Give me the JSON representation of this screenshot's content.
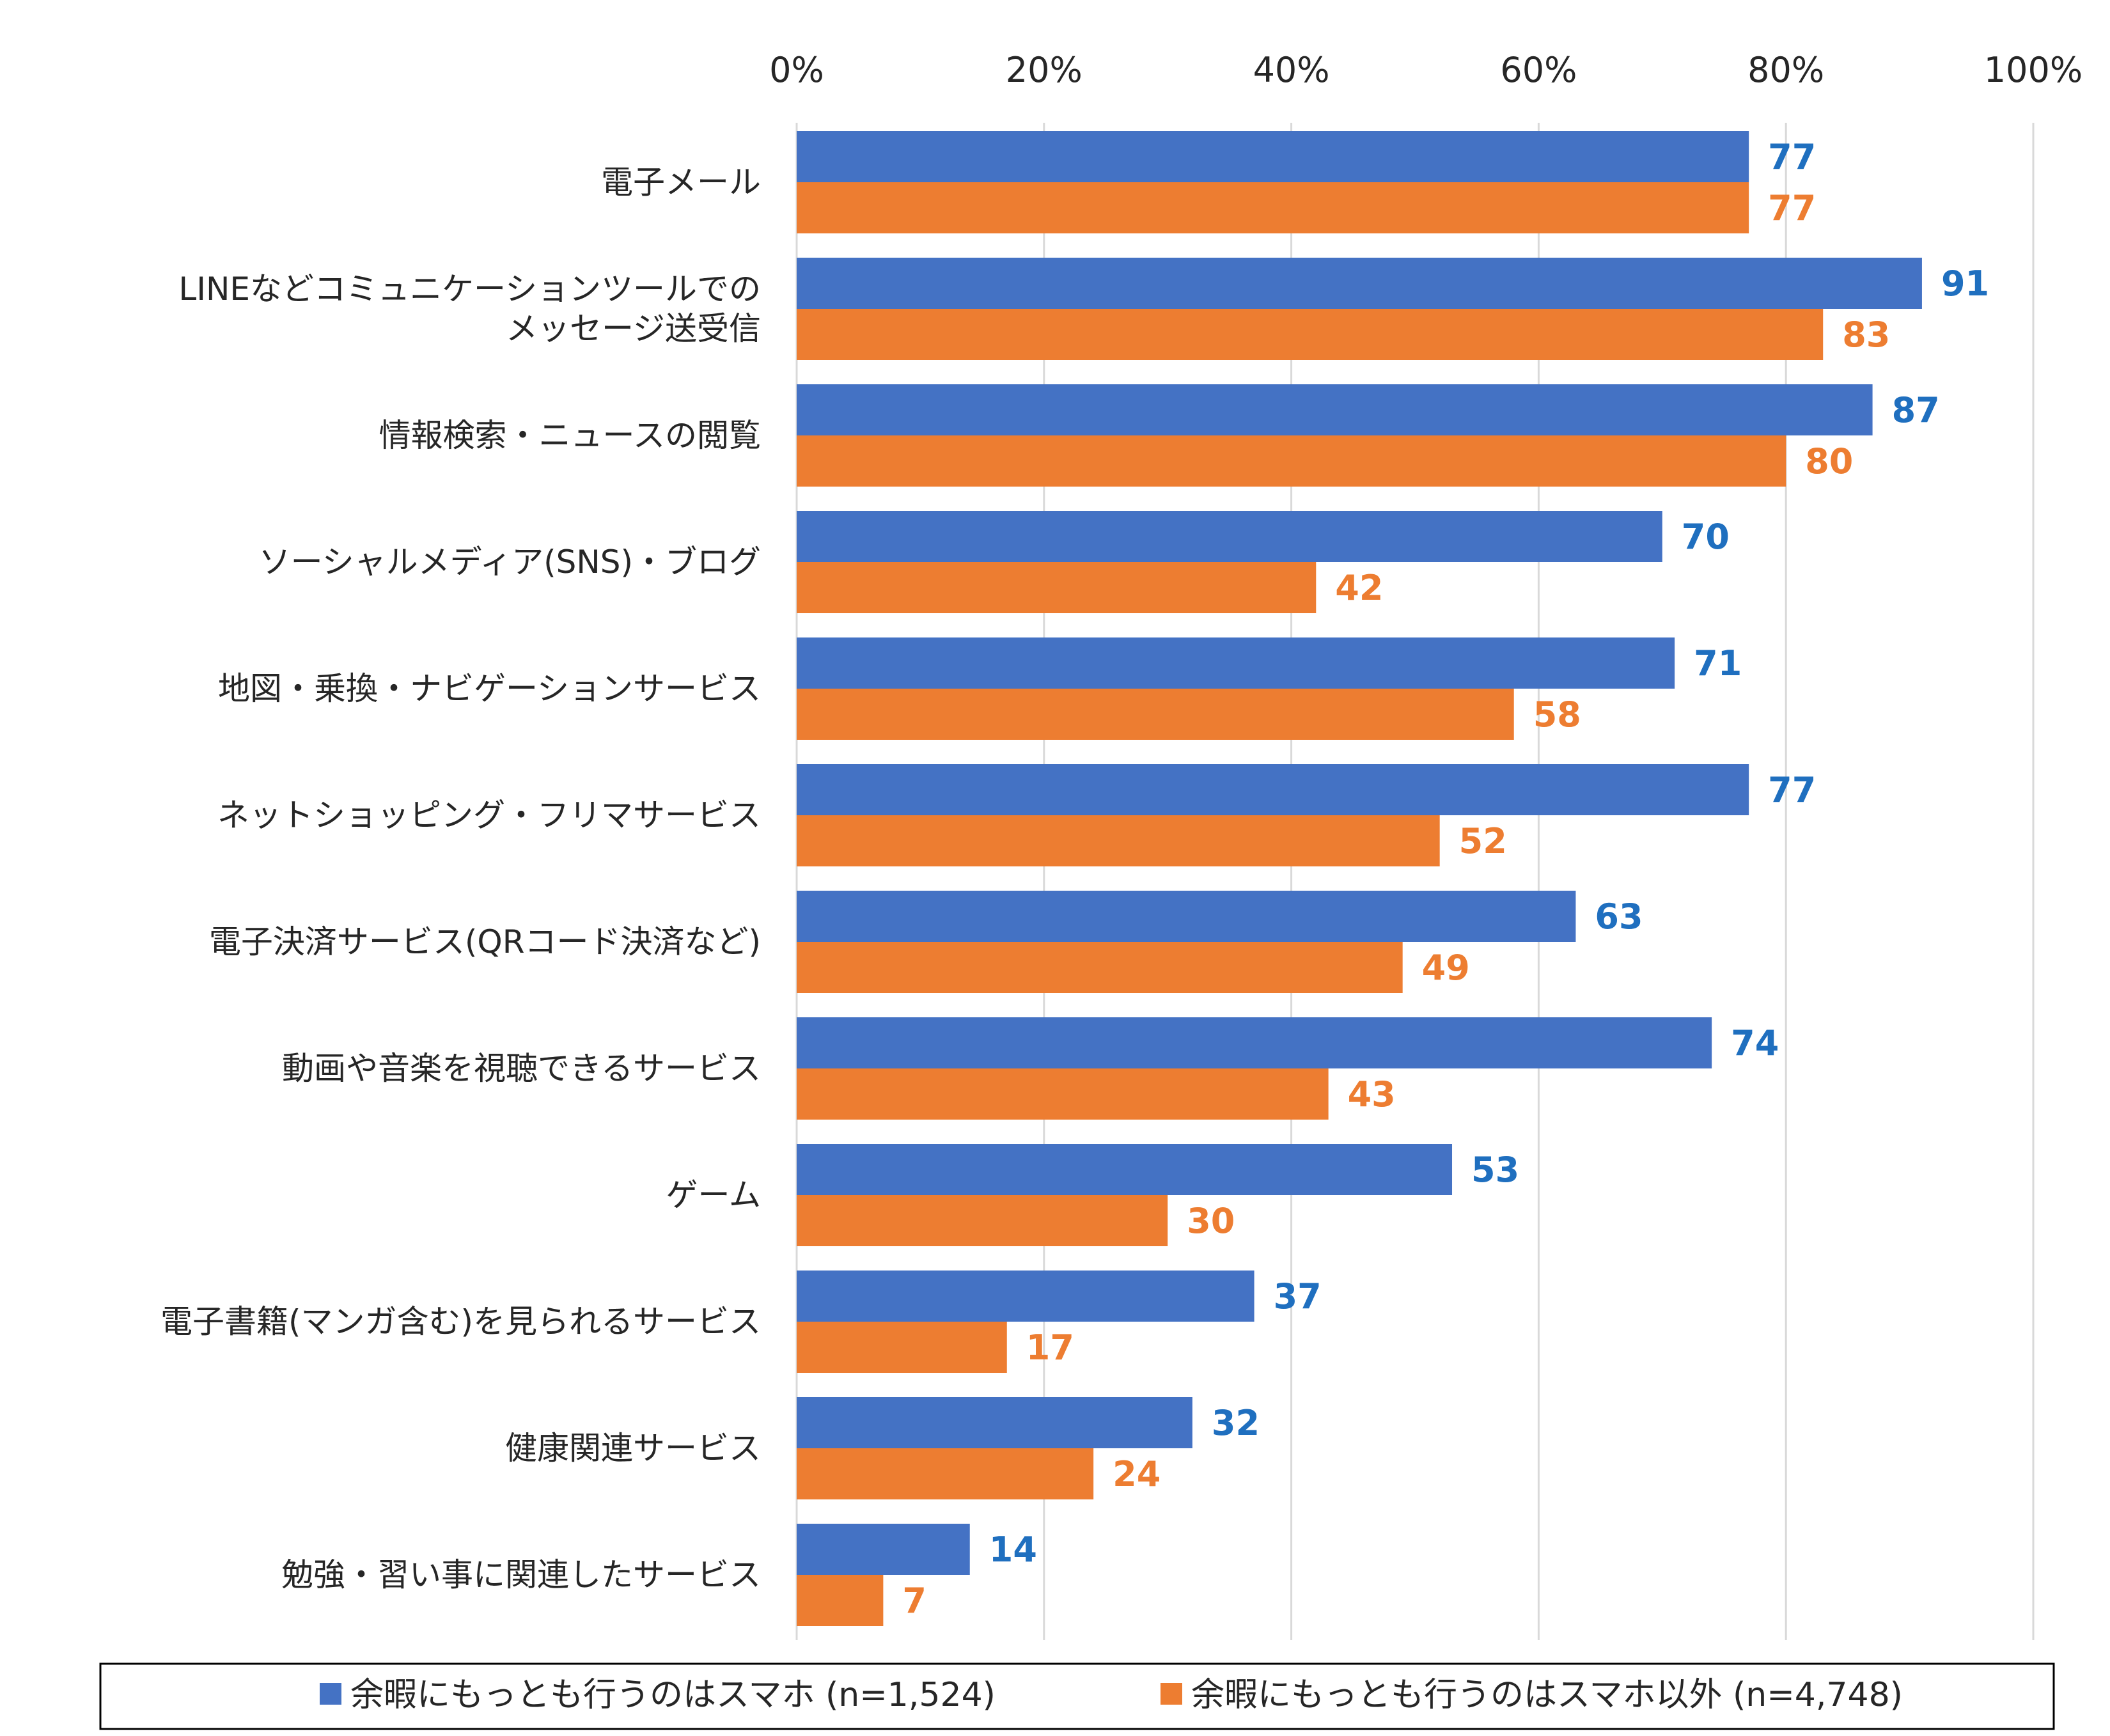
{
  "chart_data": {
    "type": "bar",
    "orientation": "horizontal",
    "xaxis": {
      "ticks": [
        "0%",
        "20%",
        "40%",
        "60%",
        "80%",
        "100%"
      ],
      "range": [
        0,
        100
      ],
      "position": "top",
      "grid": true
    },
    "categories": [
      [
        "電子メール"
      ],
      [
        "LINEなどコミュニケーションツールでの",
        "メッセージ送受信"
      ],
      [
        "情報検索・ニュースの閲覧"
      ],
      [
        "ソーシャルメディア(SNS)・ブログ"
      ],
      [
        "地図・乗換・ナビゲーションサービス"
      ],
      [
        "ネットショッピング・フリマサービス"
      ],
      [
        "電子決済サービス(QRコード決済など)"
      ],
      [
        "動画や音楽を視聴できるサービス"
      ],
      [
        "ゲーム"
      ],
      [
        "電子書籍(マンガ含む)を見られるサービス"
      ],
      [
        "健康関連サービス"
      ],
      [
        "勉強・習い事に関連したサービス"
      ]
    ],
    "series": [
      {
        "name": "余暇にもっとも行うのはスマホ (n=1,524)",
        "color": "#4472c4",
        "label_color": "#1f6fbf",
        "values": [
          77,
          91,
          87,
          70,
          71,
          77,
          63,
          74,
          53,
          37,
          32,
          14
        ]
      },
      {
        "name": "余暇にもっとも行うのはスマホ以外 (n=4,748)",
        "color": "#ed7d31",
        "label_color": "#ed7d31",
        "values": [
          77,
          83,
          80,
          42,
          58,
          52,
          49,
          43,
          30,
          17,
          24,
          7
        ]
      }
    ],
    "legend_position": "bottom"
  }
}
